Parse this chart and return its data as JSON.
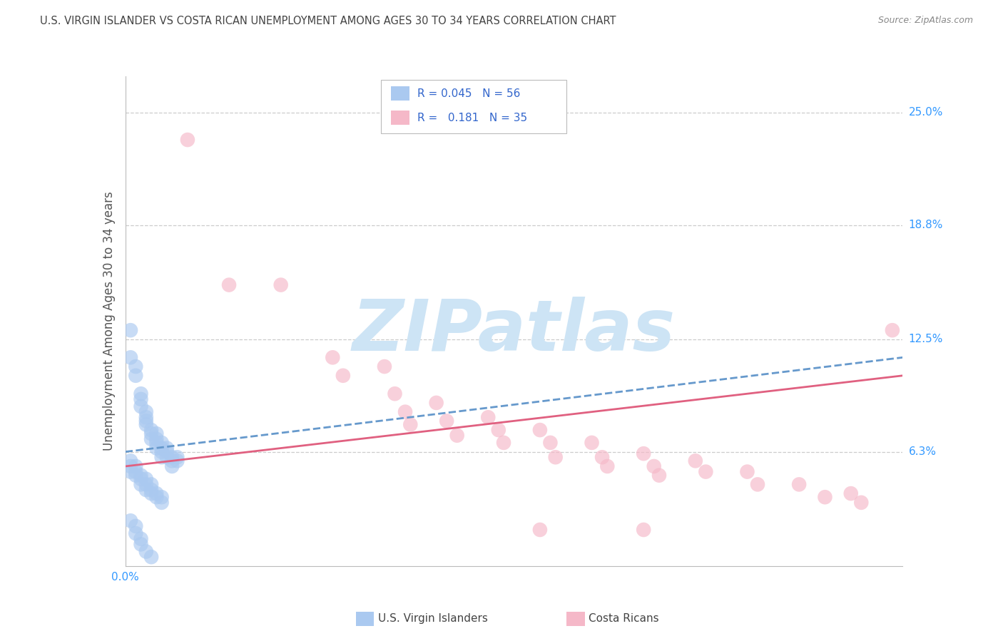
{
  "title": "U.S. VIRGIN ISLANDER VS COSTA RICAN UNEMPLOYMENT AMONG AGES 30 TO 34 YEARS CORRELATION CHART",
  "source": "Source: ZipAtlas.com",
  "ylabel": "Unemployment Among Ages 30 to 34 years",
  "xlim": [
    0.0,
    0.15
  ],
  "ylim": [
    0.0,
    0.27
  ],
  "yticks": [
    0.063,
    0.125,
    0.188,
    0.25
  ],
  "ytick_labels": [
    "6.3%",
    "12.5%",
    "18.8%",
    "25.0%"
  ],
  "gridline_color": "#cccccc",
  "background_color": "#ffffff",
  "vi_color": "#aac9f0",
  "cr_color": "#f5b8c8",
  "vi_line_color": "#6699cc",
  "cr_line_color": "#e06080",
  "vi_R": 0.045,
  "vi_N": 56,
  "cr_R": 0.181,
  "cr_N": 35,
  "vi_label": "U.S. Virgin Islanders",
  "cr_label": "Costa Ricans",
  "vi_scatter": [
    [
      0.001,
      0.13
    ],
    [
      0.001,
      0.115
    ],
    [
      0.002,
      0.11
    ],
    [
      0.002,
      0.105
    ],
    [
      0.003,
      0.095
    ],
    [
      0.003,
      0.092
    ],
    [
      0.003,
      0.088
    ],
    [
      0.004,
      0.085
    ],
    [
      0.004,
      0.082
    ],
    [
      0.004,
      0.08
    ],
    [
      0.004,
      0.078
    ],
    [
      0.005,
      0.075
    ],
    [
      0.005,
      0.073
    ],
    [
      0.005,
      0.07
    ],
    [
      0.006,
      0.073
    ],
    [
      0.006,
      0.07
    ],
    [
      0.006,
      0.068
    ],
    [
      0.006,
      0.065
    ],
    [
      0.007,
      0.068
    ],
    [
      0.007,
      0.065
    ],
    [
      0.007,
      0.063
    ],
    [
      0.007,
      0.06
    ],
    [
      0.008,
      0.065
    ],
    [
      0.008,
      0.063
    ],
    [
      0.008,
      0.06
    ],
    [
      0.009,
      0.06
    ],
    [
      0.009,
      0.058
    ],
    [
      0.009,
      0.055
    ],
    [
      0.01,
      0.06
    ],
    [
      0.01,
      0.058
    ],
    [
      0.001,
      0.058
    ],
    [
      0.001,
      0.055
    ],
    [
      0.001,
      0.052
    ],
    [
      0.002,
      0.055
    ],
    [
      0.002,
      0.052
    ],
    [
      0.002,
      0.05
    ],
    [
      0.003,
      0.05
    ],
    [
      0.003,
      0.048
    ],
    [
      0.003,
      0.045
    ],
    [
      0.004,
      0.048
    ],
    [
      0.004,
      0.045
    ],
    [
      0.004,
      0.042
    ],
    [
      0.005,
      0.045
    ],
    [
      0.005,
      0.042
    ],
    [
      0.005,
      0.04
    ],
    [
      0.006,
      0.04
    ],
    [
      0.006,
      0.038
    ],
    [
      0.007,
      0.038
    ],
    [
      0.007,
      0.035
    ],
    [
      0.001,
      0.025
    ],
    [
      0.002,
      0.022
    ],
    [
      0.002,
      0.018
    ],
    [
      0.003,
      0.015
    ],
    [
      0.003,
      0.012
    ],
    [
      0.004,
      0.008
    ],
    [
      0.005,
      0.005
    ]
  ],
  "cr_scatter": [
    [
      0.012,
      0.235
    ],
    [
      0.02,
      0.155
    ],
    [
      0.03,
      0.155
    ],
    [
      0.04,
      0.115
    ],
    [
      0.042,
      0.105
    ],
    [
      0.05,
      0.11
    ],
    [
      0.052,
      0.095
    ],
    [
      0.054,
      0.085
    ],
    [
      0.055,
      0.078
    ],
    [
      0.06,
      0.09
    ],
    [
      0.062,
      0.08
    ],
    [
      0.064,
      0.072
    ],
    [
      0.07,
      0.082
    ],
    [
      0.072,
      0.075
    ],
    [
      0.073,
      0.068
    ],
    [
      0.08,
      0.075
    ],
    [
      0.082,
      0.068
    ],
    [
      0.083,
      0.06
    ],
    [
      0.09,
      0.068
    ],
    [
      0.092,
      0.06
    ],
    [
      0.093,
      0.055
    ],
    [
      0.1,
      0.062
    ],
    [
      0.102,
      0.055
    ],
    [
      0.103,
      0.05
    ],
    [
      0.11,
      0.058
    ],
    [
      0.112,
      0.052
    ],
    [
      0.12,
      0.052
    ],
    [
      0.122,
      0.045
    ],
    [
      0.13,
      0.045
    ],
    [
      0.135,
      0.038
    ],
    [
      0.14,
      0.04
    ],
    [
      0.142,
      0.035
    ],
    [
      0.148,
      0.13
    ],
    [
      0.08,
      0.02
    ],
    [
      0.1,
      0.02
    ]
  ],
  "watermark_text": "ZIPatlas",
  "watermark_color": "#cde4f5",
  "watermark_fontsize": 72
}
